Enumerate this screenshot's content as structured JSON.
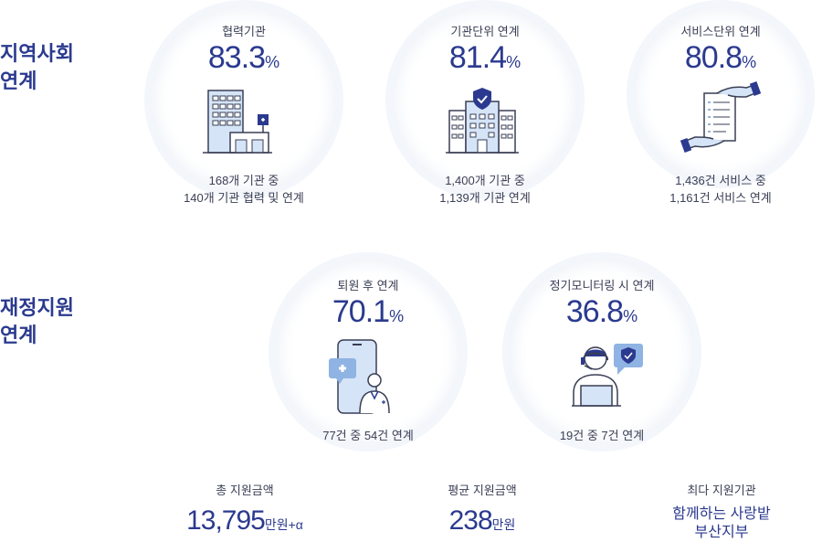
{
  "sections": {
    "community": "지역사회\n연계",
    "financial": "재정지원\n연계"
  },
  "stats": [
    {
      "caption": "협력기관",
      "value": "83.3",
      "unit": "%",
      "note": "168개 기관 중\n140개 기관 협력 및 연계",
      "icon": "building-icon"
    },
    {
      "caption": "기관단위 연계",
      "value": "81.4",
      "unit": "%",
      "note": "1,400개 기관 중\n1,139개 기관 연계",
      "icon": "secure-building-icon"
    },
    {
      "caption": "서비스단위 연계",
      "value": "80.8",
      "unit": "%",
      "note": "1,436건 서비스 중\n1,161건 서비스 연계",
      "icon": "document-hands-icon"
    },
    {
      "caption": "퇴원 후 연계",
      "value": "70.1",
      "unit": "%",
      "note": "77건 중 54건 연계",
      "icon": "phone-doctor-icon"
    },
    {
      "caption": "정기모니터링 시 연계",
      "value": "36.8",
      "unit": "%",
      "note": "19건 중 7건 연계",
      "icon": "headset-agent-icon"
    }
  ],
  "summary": {
    "total": {
      "caption": "총 지원금액",
      "value": "13,795",
      "unit": "만원+α"
    },
    "average": {
      "caption": "평균 지원금액",
      "value": "238",
      "unit": "만원"
    },
    "top": {
      "caption": "최다 지원기관",
      "org": "함께하는 사랑밭\n부산지부"
    }
  },
  "colors": {
    "accent": "#2b3a8f",
    "light": "#d6e4f7",
    "mid": "#8fb3e3"
  }
}
